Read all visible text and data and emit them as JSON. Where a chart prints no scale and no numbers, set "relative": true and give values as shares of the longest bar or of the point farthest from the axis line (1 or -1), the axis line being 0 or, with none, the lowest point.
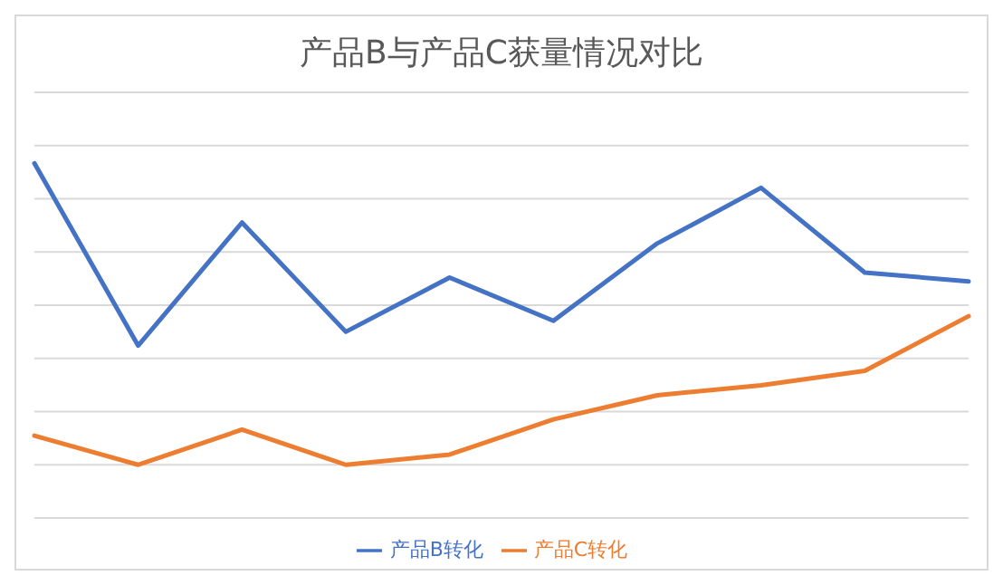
{
  "chart_data": {
    "type": "line",
    "title": "产品B与产品C获量情况对比",
    "relative": true,
    "categories": [
      null,
      null,
      null,
      null,
      null,
      null,
      null,
      null,
      null,
      null
    ],
    "series": [
      {
        "name": "产品B转化",
        "color": "#4472c4",
        "values": [
          1,
          0.486,
          0.833,
          0.525,
          0.678,
          0.556,
          0.774,
          0.931,
          0.692,
          0.667
        ]
      },
      {
        "name": "产品C转化",
        "color": "#ed7d31",
        "values": [
          0.232,
          0.15,
          0.249,
          0.15,
          0.179,
          0.278,
          0.346,
          0.374,
          0.415,
          0.569
        ]
      }
    ],
    "grid": "y",
    "legend": "bottom",
    "marker": "none",
    "line_style": "solid"
  }
}
